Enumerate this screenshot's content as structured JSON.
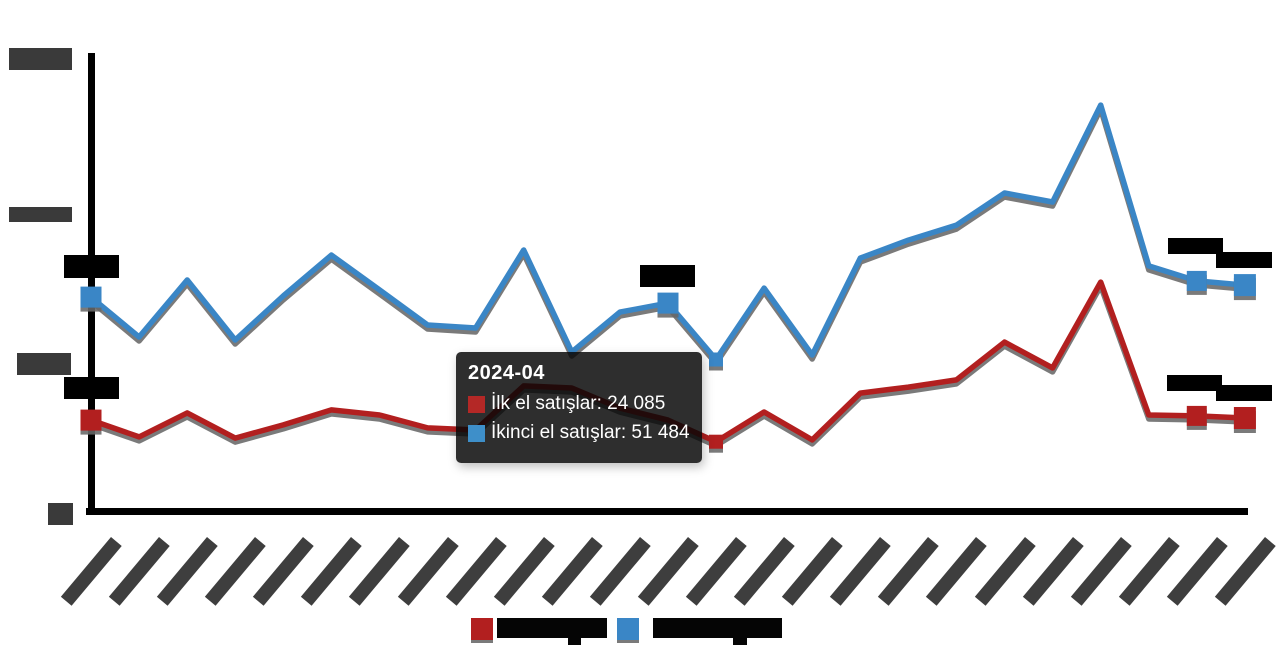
{
  "chart_data": {
    "type": "line",
    "title": "",
    "x": [
      "2023-03",
      "2023-04",
      "2023-05",
      "2023-06",
      "2023-07",
      "2023-08",
      "2023-09",
      "2023-10",
      "2023-11",
      "2023-12",
      "2024-01",
      "2024-02",
      "2024-03",
      "2024-04",
      "2024-05",
      "2024-06",
      "2024-07",
      "2024-08",
      "2024-09",
      "2024-10",
      "2024-11",
      "2024-12",
      "2025-01",
      "2025-02",
      "2025-03"
    ],
    "x_axis_labels_redacted": true,
    "y_ticks": [
      0,
      50000,
      100000,
      150000
    ],
    "y_tick_labels_redacted": true,
    "ylim": [
      0,
      155000
    ],
    "grid": false,
    "legend_position": "bottom",
    "series": [
      {
        "name": "İlk el satışlar",
        "color": "#b21f1f",
        "values": [
          31300,
          25700,
          33700,
          25300,
          29700,
          34700,
          33000,
          28700,
          28000,
          42700,
          42000,
          35300,
          31300,
          24085,
          34000,
          24700,
          40300,
          42300,
          44700,
          57300,
          48700,
          77300,
          33000,
          32700,
          32000
        ]
      },
      {
        "name": "İkinci el satışlar",
        "color": "#3a86c6",
        "values": [
          72300,
          59000,
          78000,
          58000,
          72700,
          86300,
          74700,
          63000,
          62000,
          88000,
          54000,
          67300,
          70300,
          51484,
          75300,
          53000,
          85300,
          91300,
          96300,
          107000,
          104000,
          136300,
          82700,
          77700,
          76300
        ]
      }
    ],
    "hovered_index": 13,
    "hovered_x": "2024-04"
  },
  "tooltip": {
    "title": "2024-04",
    "rows": [
      {
        "text": "İlk el satışlar: 24 085",
        "color": "#b42826"
      },
      {
        "text": "İkinci el satışlar: 51 484",
        "color": "#3e8fc9"
      }
    ]
  },
  "legend": {
    "redacted": true,
    "items": [
      {
        "label": "İlk el satışlar"
      },
      {
        "label": "İkinci el satışlar"
      }
    ]
  }
}
